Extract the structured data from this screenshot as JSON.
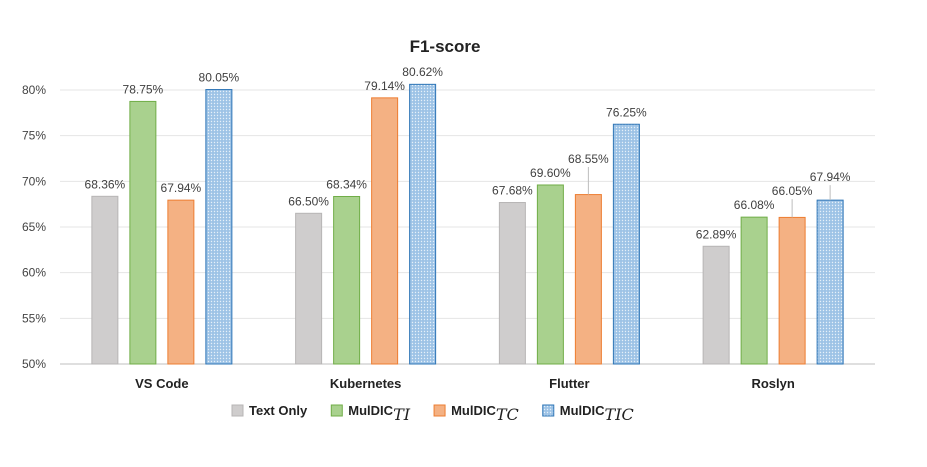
{
  "chart_data": {
    "type": "bar",
    "title": "F1-score",
    "xlabel": "",
    "ylabel": "",
    "categories": [
      "VS Code",
      "Kubernetes",
      "Flutter",
      "Roslyn"
    ],
    "series": [
      {
        "name": "Text Only",
        "values": [
          68.36,
          66.5,
          67.68,
          62.89
        ],
        "labels": [
          "68.36%",
          "66.50%",
          "67.68%",
          "62.89%"
        ],
        "color": "#cfcdcd",
        "border": "#b7b5b5"
      },
      {
        "name": "MulDIC",
        "name_sub": "TI",
        "values": [
          78.75,
          68.34,
          69.6,
          66.08
        ],
        "labels": [
          "78.75%",
          "68.34%",
          "69.60%",
          "66.08%"
        ],
        "color": "#a9d18e",
        "border": "#70ad47"
      },
      {
        "name": "MulDIC",
        "name_sub": "TC",
        "values": [
          67.94,
          79.14,
          68.55,
          66.05
        ],
        "labels": [
          "67.94%",
          "79.14%",
          "68.55%",
          "66.05%"
        ],
        "color": "#f4b183",
        "border": "#ed7d31"
      },
      {
        "name": "MulDIC",
        "name_sub": "TIC",
        "values": [
          80.05,
          80.62,
          76.25,
          67.94
        ],
        "labels": [
          "80.05%",
          "80.62%",
          "76.25%",
          "67.94%"
        ],
        "color": "#9dc3e6",
        "border": "#2e75b6",
        "pattern": "dots"
      }
    ],
    "ylim": [
      50,
      80
    ],
    "yticks": [
      "50%",
      "55%",
      "60%",
      "65%",
      "70%",
      "75%",
      "80%"
    ],
    "grid": true,
    "legend_position": "bottom"
  }
}
